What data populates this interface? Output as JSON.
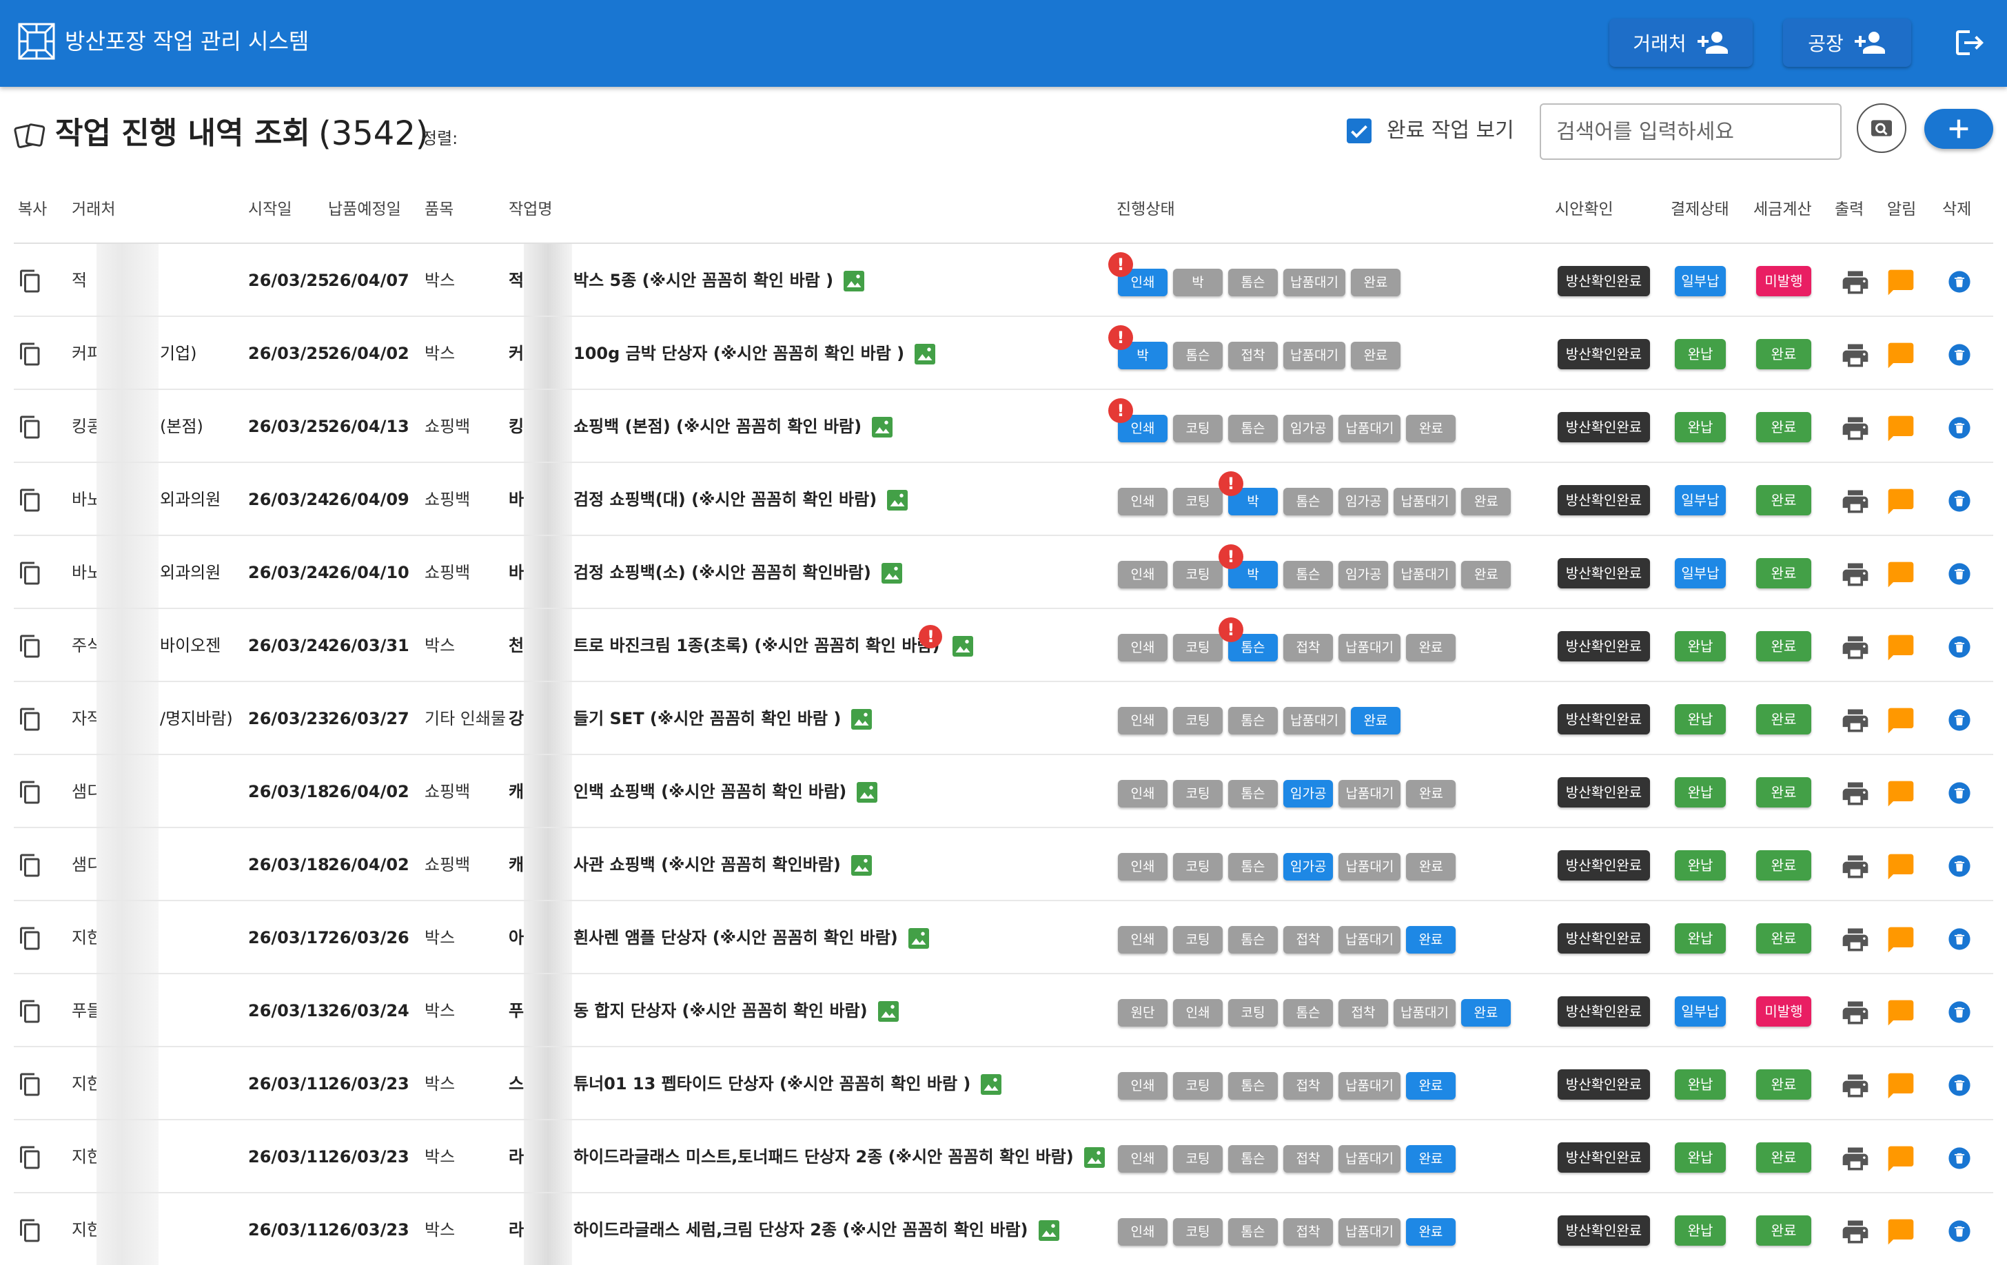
{
  "app": {
    "title": "방산포장 작업 관리 시스템",
    "accent": "#1976d2",
    "client_button": "거래처",
    "factory_button": "공장",
    "icons": [
      "company-logo-icon",
      "add-person-icon",
      "logout-icon"
    ]
  },
  "page": {
    "title": "작업 진행 내역 조회",
    "count": "(3542)",
    "sort_label": "정렬:",
    "show_done_label": "완료 작업 보기",
    "show_done_checked": true,
    "search_placeholder": "검색어를 입력하세요"
  },
  "columns": {
    "copy": "복사",
    "client": "거래처",
    "start": "시작일",
    "due": "납품예정일",
    "category": "품목",
    "job": "작업명",
    "status": "진행상태",
    "proof": "시안확인",
    "payment": "결제상태",
    "tax": "세금계산",
    "print": "출력",
    "notify": "알림",
    "delete": "삭제"
  },
  "rows": [
    {
      "client": "적",
      "start": "26/03/25",
      "due": "26/04/07",
      "category": "박스",
      "job_prefix": "적",
      "job": "박스 5종 (※시안 꼼꼼히 확인 바람 )",
      "steps": [
        {
          "label": "인쇄",
          "on": true,
          "alert": true
        },
        {
          "label": "박"
        },
        {
          "label": "톰슨"
        },
        {
          "label": "납품대기"
        },
        {
          "label": "완료"
        }
      ],
      "proof": "방산확인완료",
      "payment": "일부납",
      "payment_color": "#1e88e5",
      "tax": "미발행",
      "tax_color": "#e91e63"
    },
    {
      "client": "커피",
      "client_suffix": "기업)",
      "start": "26/03/25",
      "due": "26/04/02",
      "category": "박스",
      "job_prefix": "커",
      "job": "100g 금박 단상자 (※시안 꼼꼼히 확인 바람 )",
      "steps": [
        {
          "label": "박",
          "on": true,
          "alert": true
        },
        {
          "label": "톰슨"
        },
        {
          "label": "접착"
        },
        {
          "label": "납품대기"
        },
        {
          "label": "완료"
        }
      ],
      "proof": "방산확인완료",
      "payment": "완납",
      "payment_color": "#43a047",
      "tax": "완료",
      "tax_color": "#43a047"
    },
    {
      "client": "킹콩",
      "client_suffix": "(본점)",
      "start": "26/03/25",
      "due": "26/04/13",
      "category": "쇼핑백",
      "job_prefix": "킹",
      "job": "쇼핑백 (본점) (※시안 꼼꼼히 확인 바람)",
      "steps": [
        {
          "label": "인쇄",
          "on": true,
          "alert": true
        },
        {
          "label": "코팅"
        },
        {
          "label": "톰슨"
        },
        {
          "label": "임가공"
        },
        {
          "label": "납품대기"
        },
        {
          "label": "완료"
        }
      ],
      "proof": "방산확인완료",
      "payment": "완납",
      "payment_color": "#43a047",
      "tax": "완료",
      "tax_color": "#43a047"
    },
    {
      "client": "바노",
      "client_suffix": "외과의원",
      "start": "26/03/24",
      "due": "26/04/09",
      "category": "쇼핑백",
      "job_prefix": "바",
      "job": "검정 쇼핑백(대) (※시안 꼼꼼히 확인 바람)",
      "steps": [
        {
          "label": "인쇄"
        },
        {
          "label": "코팅"
        },
        {
          "label": "박",
          "on": true,
          "alert": true
        },
        {
          "label": "톰슨"
        },
        {
          "label": "임가공"
        },
        {
          "label": "납품대기"
        },
        {
          "label": "완료"
        }
      ],
      "proof": "방산확인완료",
      "payment": "일부납",
      "payment_color": "#1e88e5",
      "tax": "완료",
      "tax_color": "#43a047"
    },
    {
      "client": "바노",
      "client_suffix": "외과의원",
      "start": "26/03/24",
      "due": "26/04/10",
      "category": "쇼핑백",
      "job_prefix": "바",
      "job": "검정 쇼핑백(소) (※시안 꼼꼼히 확인바람)",
      "steps": [
        {
          "label": "인쇄"
        },
        {
          "label": "코팅"
        },
        {
          "label": "박",
          "on": true,
          "alert": true
        },
        {
          "label": "톰슨"
        },
        {
          "label": "임가공"
        },
        {
          "label": "납품대기"
        },
        {
          "label": "완료"
        }
      ],
      "proof": "방산확인완료",
      "payment": "일부납",
      "payment_color": "#1e88e5",
      "tax": "완료",
      "tax_color": "#43a047"
    },
    {
      "client": "주식",
      "client_suffix": "바이오젠",
      "start": "26/03/24",
      "due": "26/03/31",
      "category": "박스",
      "job_prefix": "천",
      "job": "트로 바진크림 1종(초록) (※시안 꼼꼼히 확인 바람)",
      "job_alert": true,
      "steps": [
        {
          "label": "인쇄"
        },
        {
          "label": "코팅"
        },
        {
          "label": "톰슨",
          "on": true,
          "alert": true
        },
        {
          "label": "접착"
        },
        {
          "label": "납품대기"
        },
        {
          "label": "완료"
        }
      ],
      "proof": "방산확인완료",
      "payment": "완납",
      "payment_color": "#43a047",
      "tax": "완료",
      "tax_color": "#43a047"
    },
    {
      "client": "자작",
      "client_suffix": "/명지바람)",
      "start": "26/03/23",
      "due": "26/03/27",
      "category": "기타 인쇄물",
      "job_prefix": "강",
      "job": "들기 SET (※시안 꼼꼼히 확인 바람 )",
      "steps": [
        {
          "label": "인쇄"
        },
        {
          "label": "코팅"
        },
        {
          "label": "톰슨"
        },
        {
          "label": "납품대기"
        },
        {
          "label": "완료",
          "on": true
        }
      ],
      "proof": "방산확인완료",
      "payment": "완납",
      "payment_color": "#43a047",
      "tax": "완료",
      "tax_color": "#43a047"
    },
    {
      "client": "샘디",
      "start": "26/03/18",
      "due": "26/04/02",
      "category": "쇼핑백",
      "job_prefix": "캐",
      "job": "인백 쇼핑백 (※시안 꼼꼼히 확인 바람)",
      "steps": [
        {
          "label": "인쇄"
        },
        {
          "label": "코팅"
        },
        {
          "label": "톰슨"
        },
        {
          "label": "임가공",
          "on": true
        },
        {
          "label": "납품대기"
        },
        {
          "label": "완료"
        }
      ],
      "proof": "방산확인완료",
      "payment": "완납",
      "payment_color": "#43a047",
      "tax": "완료",
      "tax_color": "#43a047"
    },
    {
      "client": "샘디",
      "start": "26/03/18",
      "due": "26/04/02",
      "category": "쇼핑백",
      "job_prefix": "캐",
      "job": "사관 쇼핑백 (※시안 꼼꼼히 확인바람)",
      "steps": [
        {
          "label": "인쇄"
        },
        {
          "label": "코팅"
        },
        {
          "label": "톰슨"
        },
        {
          "label": "임가공",
          "on": true
        },
        {
          "label": "납품대기"
        },
        {
          "label": "완료"
        }
      ],
      "proof": "방산확인완료",
      "payment": "완납",
      "payment_color": "#43a047",
      "tax": "완료",
      "tax_color": "#43a047"
    },
    {
      "client": "지한",
      "start": "26/03/17",
      "due": "26/03/26",
      "category": "박스",
      "job_prefix": "아",
      "job": "흰사렌 앰플 단상자 (※시안 꼼꼼히 확인 바람)",
      "steps": [
        {
          "label": "인쇄"
        },
        {
          "label": "코팅"
        },
        {
          "label": "톰슨"
        },
        {
          "label": "접착"
        },
        {
          "label": "납품대기"
        },
        {
          "label": "완료",
          "on": true
        }
      ],
      "proof": "방산확인완료",
      "payment": "완납",
      "payment_color": "#43a047",
      "tax": "완료",
      "tax_color": "#43a047"
    },
    {
      "client": "푸들",
      "start": "26/03/13",
      "due": "26/03/24",
      "category": "박스",
      "job_prefix": "푸",
      "job": "동 합지 단상자 (※시안 꼼꼼히 확인 바람)",
      "steps": [
        {
          "label": "원단"
        },
        {
          "label": "인쇄"
        },
        {
          "label": "코팅"
        },
        {
          "label": "톰슨"
        },
        {
          "label": "접착"
        },
        {
          "label": "납품대기"
        },
        {
          "label": "완료",
          "on": true
        }
      ],
      "proof": "방산확인완료",
      "payment": "일부납",
      "payment_color": "#1e88e5",
      "tax": "미발행",
      "tax_color": "#e91e63"
    },
    {
      "client": "지한",
      "start": "26/03/11",
      "due": "26/03/23",
      "category": "박스",
      "job_prefix": "스",
      "job": "튜너01 13 펩타이드 단상자 (※시안 꼼꼼히 확인 바람 )",
      "steps": [
        {
          "label": "인쇄"
        },
        {
          "label": "코팅"
        },
        {
          "label": "톰슨"
        },
        {
          "label": "접착"
        },
        {
          "label": "납품대기"
        },
        {
          "label": "완료",
          "on": true
        }
      ],
      "proof": "방산확인완료",
      "payment": "완납",
      "payment_color": "#43a047",
      "tax": "완료",
      "tax_color": "#43a047"
    },
    {
      "client": "지한",
      "start": "26/03/11",
      "due": "26/03/23",
      "category": "박스",
      "job_prefix": "라",
      "job": "하이드라글래스 미스트,토너패드 단상자 2종 (※시안 꼼꼼히 확인 바람)",
      "steps": [
        {
          "label": "인쇄"
        },
        {
          "label": "코팅"
        },
        {
          "label": "톰슨"
        },
        {
          "label": "접착"
        },
        {
          "label": "납품대기"
        },
        {
          "label": "완료",
          "on": true
        }
      ],
      "proof": "방산확인완료",
      "payment": "완납",
      "payment_color": "#43a047",
      "tax": "완료",
      "tax_color": "#43a047"
    },
    {
      "client": "지한",
      "start": "26/03/11",
      "due": "26/03/23",
      "category": "박스",
      "job_prefix": "라",
      "job": "하이드라글래스 세럼,크림 단상자 2종 (※시안 꼼꼼히 확인 바람)",
      "steps": [
        {
          "label": "인쇄"
        },
        {
          "label": "코팅"
        },
        {
          "label": "톰슨"
        },
        {
          "label": "접착"
        },
        {
          "label": "납품대기"
        },
        {
          "label": "완료",
          "on": true
        }
      ],
      "proof": "방산확인완료",
      "payment": "완납",
      "payment_color": "#43a047",
      "tax": "완료",
      "tax_color": "#43a047"
    }
  ]
}
